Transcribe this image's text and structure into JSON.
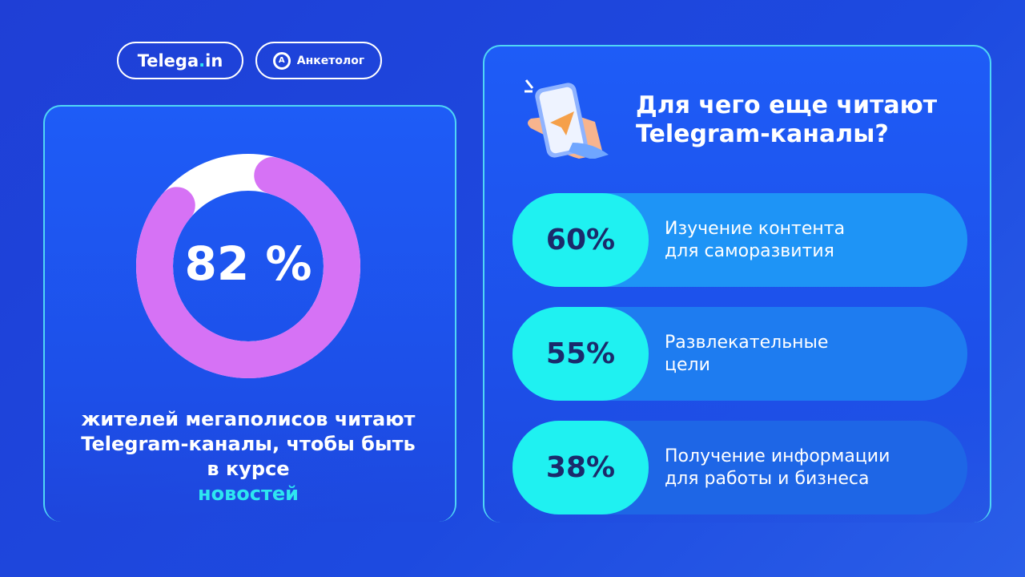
{
  "badges": {
    "telega_main": "Telega",
    "telega_dot": ".",
    "telega_tail": "in",
    "anketolog": "Анкетолог",
    "anketolog_icon": "A"
  },
  "chart_data": {
    "type": "pie",
    "variant": "donut",
    "values": [
      82,
      18
    ],
    "label": "82 %",
    "colors": {
      "filled": "#d672f5",
      "remaining": "#ffffff"
    }
  },
  "left": {
    "caption": "жителей мегаполисов читают Telegram-каналы, чтобы быть в курсе",
    "caption_highlight": "новостей"
  },
  "right": {
    "title_line1": "Для чего еще читают",
    "title_line2": "Telegram-каналы?",
    "items": [
      {
        "pct": "60%",
        "line1": "Изучение контента",
        "line2": "для саморазвития",
        "bg": "#1e94f6"
      },
      {
        "pct": "55%",
        "line1": "Развлекательные",
        "line2": "цели",
        "bg": "#1e7cf0"
      },
      {
        "pct": "38%",
        "line1": "Получение информации",
        "line2": "для работы и бизнеса",
        "bg": "#1e66e6"
      }
    ]
  },
  "colors": {
    "accent": "#1ff1f1",
    "purple": "#d672f5",
    "pct_text": "#1b2a6b"
  }
}
